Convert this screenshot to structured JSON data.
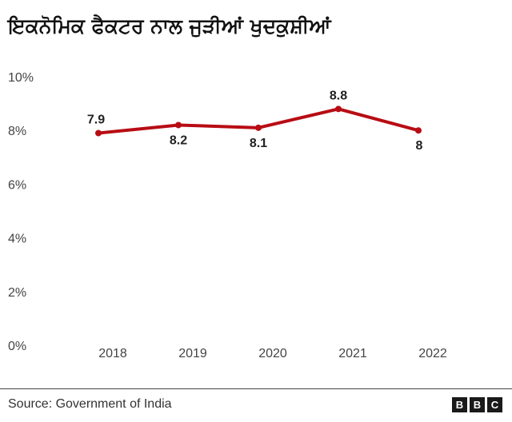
{
  "chart_data": {
    "type": "line",
    "title": "ਇਕਨੋਮਿਕ ਫੈਕਟਰ ਨਾਲ ਜੁੜੀਆਂ ਖੁਦਕੁਸ਼ੀਆਂ",
    "categories": [
      "2018",
      "2019",
      "2020",
      "2021",
      "2022"
    ],
    "series": [
      {
        "values": [
          7.9,
          8.2,
          8.1,
          8.8,
          8.0
        ],
        "data_labels": [
          "7.9",
          "8.2",
          "8.1",
          "8.8",
          "8"
        ],
        "label_positions": [
          "above",
          "below",
          "below",
          "above",
          "below"
        ],
        "color": "#b80c14"
      }
    ],
    "yticks": [
      0,
      2,
      4,
      6,
      8,
      10
    ],
    "ytick_labels": [
      "0%",
      "2%",
      "4%",
      "6%",
      "8%",
      "10%"
    ],
    "ylim": [
      0,
      10
    ],
    "xlabel": "",
    "ylabel": "",
    "grid": false,
    "legend": "none"
  },
  "footer": {
    "source": "Source: Government of India",
    "logo_letters": [
      "B",
      "B",
      "C"
    ]
  }
}
